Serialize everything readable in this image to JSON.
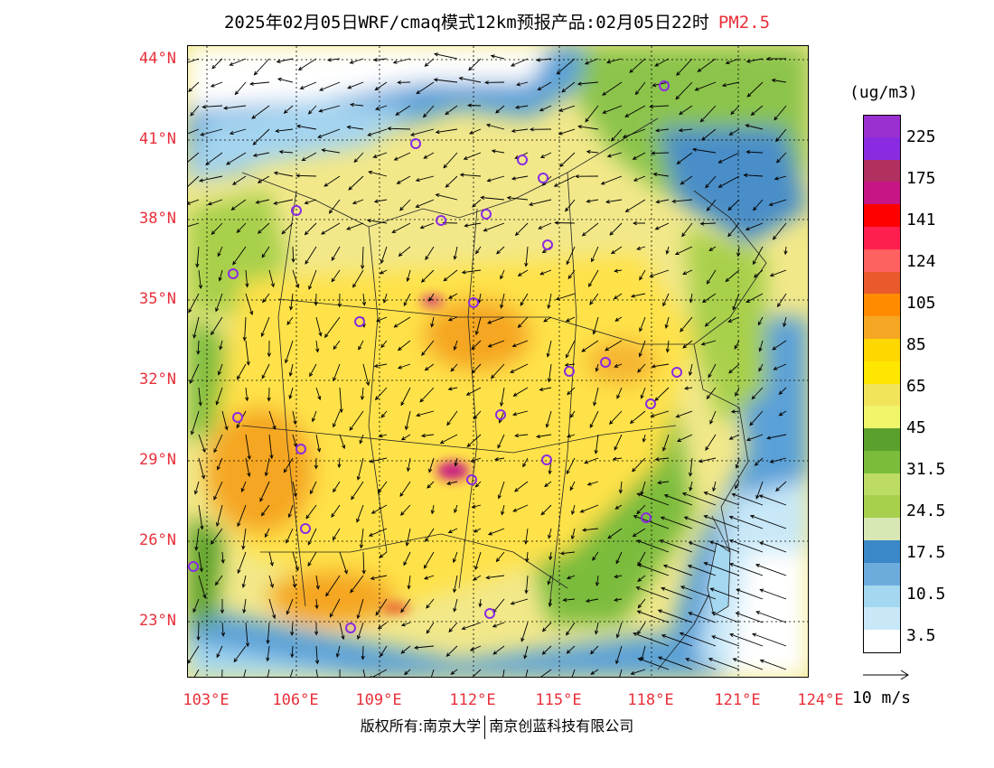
{
  "title": {
    "main": "2025年02月05日WRF/cmaq模式12km预报产品:02月05日22时",
    "variable": "PM2.5"
  },
  "axes": {
    "lat_labels": [
      "44°N",
      "41°N",
      "38°N",
      "35°N",
      "32°N",
      "29°N",
      "26°N",
      "23°N"
    ],
    "lon_labels": [
      "103°E",
      "106°E",
      "109°E",
      "112°E",
      "115°E",
      "118°E",
      "121°E",
      "124°E"
    ]
  },
  "legend": {
    "unit": "(ug/m3)",
    "colors": [
      "#9b30d0",
      "#8a2be2",
      "#b03060",
      "#c71585",
      "#ff0000",
      "#ff1f4f",
      "#ff6060",
      "#e85a2c",
      "#ff8c00",
      "#f5a623",
      "#ffd700",
      "#ffe600",
      "#f2e45a",
      "#f0f56a",
      "#5aa02c",
      "#7cbc3c",
      "#bcdc64",
      "#a8d04c",
      "#d8e8b4",
      "#3a88c8",
      "#6cacdc",
      "#a4d8f0",
      "#c8e8f8",
      "#ffffff"
    ],
    "labels": [
      "225",
      "175",
      "141",
      "124",
      "105",
      "85",
      "65",
      "45",
      "31.5",
      "24.5",
      "17.5",
      "10.5",
      "3.5"
    ]
  },
  "wind_scale": {
    "label": "10 m/s"
  },
  "footer": {
    "left": "版权所有:南京大学",
    "right": "南京创蓝科技有限公司"
  },
  "cities": [
    {
      "name": "city-hohhot"
    },
    {
      "name": "city-shijiazhuang"
    },
    {
      "name": "city-beijing"
    },
    {
      "name": "city-tianjin"
    },
    {
      "name": "city-shenyang"
    },
    {
      "name": "city-yinchuan"
    },
    {
      "name": "city-taiyuan"
    },
    {
      "name": "city-jinan"
    },
    {
      "name": "city-lanzhou"
    },
    {
      "name": "city-xian"
    },
    {
      "name": "city-zhengzhou"
    },
    {
      "name": "city-hefei"
    },
    {
      "name": "city-nanjing"
    },
    {
      "name": "city-shanghai"
    },
    {
      "name": "city-hangzhou"
    },
    {
      "name": "city-wuhan"
    },
    {
      "name": "city-chengdu"
    },
    {
      "name": "city-chongqing"
    },
    {
      "name": "city-changsha"
    },
    {
      "name": "city-nanchang"
    },
    {
      "name": "city-fuzhou"
    },
    {
      "name": "city-guiyang"
    },
    {
      "name": "city-kunming"
    },
    {
      "name": "city-nanning"
    },
    {
      "name": "city-guangzhou"
    }
  ]
}
